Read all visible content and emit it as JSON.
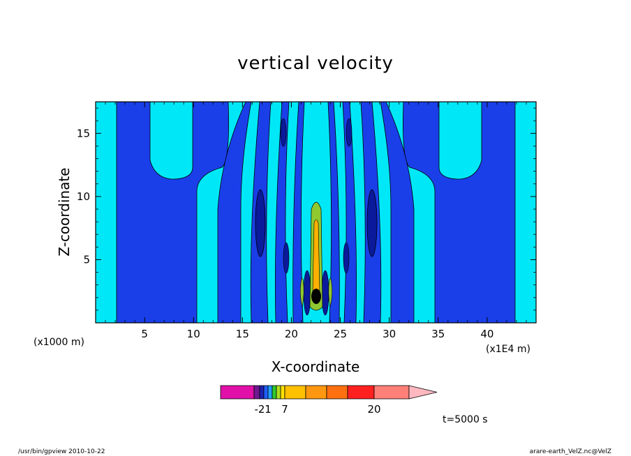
{
  "chart_data": {
    "type": "heatmap",
    "title": "vertical velocity",
    "xlabel": "X-coordinate",
    "ylabel": "Z-coordinate",
    "x_unit_note": "(x1000 m)",
    "x_scale_note": "(x1E4 m)",
    "xlim": [
      0,
      45
    ],
    "ylim": [
      0,
      17.5
    ],
    "x_ticks": [
      "5",
      "10",
      "15",
      "20",
      "25",
      "30",
      "35",
      "40"
    ],
    "y_ticks": [
      "5",
      "10",
      "15"
    ],
    "colorbar_labels": [
      "-2",
      "1",
      "7",
      "20"
    ],
    "colorbar_colors": [
      "#e010a8",
      "#701890",
      "#2020b0",
      "#2060ff",
      "#20a0ff",
      "#30c830",
      "#b0e020",
      "#ffe000",
      "#ffc000",
      "#ff9810",
      "#ff7010",
      "#ff2020",
      "#ff8078",
      "#ffb8c0"
    ],
    "field_colors": {
      "light_cyan": "#00e8f8",
      "mid_blue": "#1a3fe8",
      "dark_blue": "#0a1a9a",
      "green": "#90c830",
      "orange": "#ffb000"
    }
  },
  "annotation": {
    "time": "t=5000 s"
  },
  "footer": {
    "left": "/usr/bin/gpview   2010-10-22",
    "right": "arare-earth_VelZ.nc@VelZ"
  }
}
